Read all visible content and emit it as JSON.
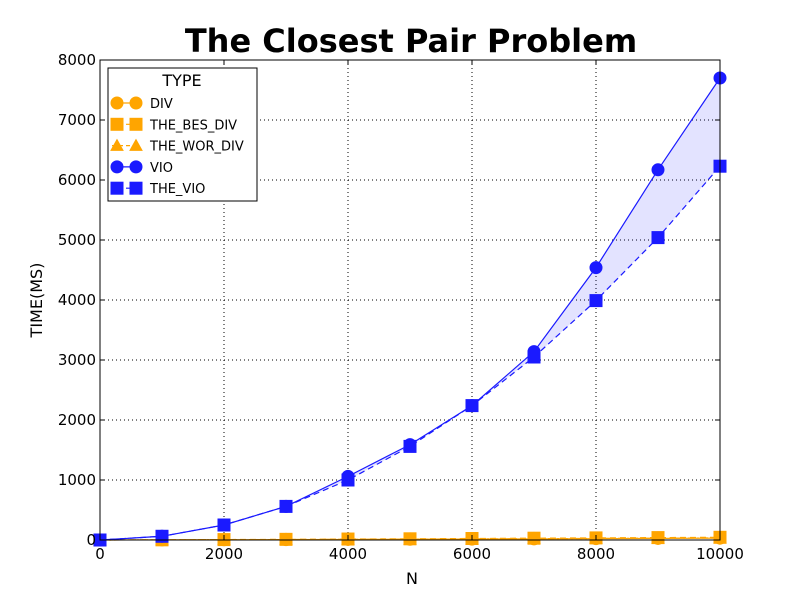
{
  "chart_data": {
    "type": "line",
    "title": "The Closest Pair Problem",
    "xlabel": "N",
    "ylabel": "TIME(MS)",
    "xlim": [
      0,
      10000
    ],
    "ylim": [
      0,
      8000
    ],
    "xticks": [
      "0",
      "2000",
      "4000",
      "6000",
      "8000",
      "10000"
    ],
    "yticks": [
      "0",
      "1000",
      "2000",
      "3000",
      "4000",
      "5000",
      "6000",
      "7000",
      "8000"
    ],
    "grid": true,
    "legend": {
      "title": "TYPE",
      "placement": "top-left"
    },
    "x": [
      0,
      1000,
      2000,
      3000,
      4000,
      5000,
      6000,
      7000,
      8000,
      9000,
      10000
    ],
    "series": [
      {
        "name": "DIV",
        "color": "#FFA500",
        "marker": "circle",
        "linestyle": "solid",
        "values": [
          0,
          2,
          4,
          6,
          9,
          12,
          15,
          18,
          22,
          26,
          30
        ]
      },
      {
        "name": "THE_BES_DIV",
        "color": "#FFA500",
        "marker": "square",
        "linestyle": "dashed",
        "values": [
          0,
          3,
          7,
          11,
          16,
          20,
          25,
          30,
          35,
          40,
          45
        ]
      },
      {
        "name": "THE_WOR_DIV",
        "color": "#FFA500",
        "marker": "triangle",
        "linestyle": "dashdot",
        "values": [
          0,
          2,
          5,
          8,
          11,
          14,
          18,
          22,
          26,
          30,
          34
        ]
      },
      {
        "name": "VIO",
        "color": "#1A1AFF",
        "marker": "circle",
        "linestyle": "solid",
        "values": [
          0,
          62,
          250,
          560,
          1060,
          1590,
          2240,
          3140,
          4540,
          6170,
          7700
        ]
      },
      {
        "name": "THE_VIO",
        "color": "#1A1AFF",
        "marker": "square",
        "linestyle": "dashed",
        "values": [
          0,
          62,
          250,
          560,
          1000,
          1560,
          2240,
          3050,
          3990,
          5040,
          6230
        ]
      }
    ],
    "fill_between": [
      {
        "series_a": "VIO",
        "series_b": "THE_VIO",
        "color": "#1A1AFF",
        "opacity": 0.12
      },
      {
        "series_a": "DIV",
        "series_b": "THE_BES_DIV",
        "color": "#FFA500",
        "opacity": 0.25
      }
    ]
  }
}
